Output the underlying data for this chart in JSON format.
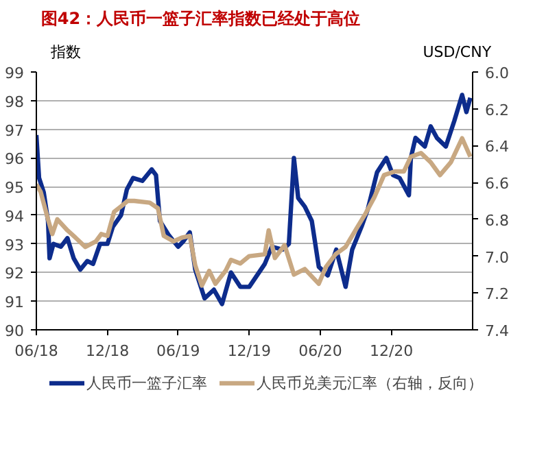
{
  "chart_data": {
    "type": "line",
    "title": "图42：人民币一篮子汇率指数已经处于高位",
    "ylabel": "指数",
    "y2label": "USD/CNY",
    "xlim": [
      "2018-06-01",
      "2021-06-28"
    ],
    "xticks": [
      {
        "value": "2018-06-01",
        "label": "06/18"
      },
      {
        "value": "2018-12-01",
        "label": "12/18"
      },
      {
        "value": "2019-06-01",
        "label": "06/19"
      },
      {
        "value": "2019-12-01",
        "label": "12/19"
      },
      {
        "value": "2020-06-01",
        "label": "06/20"
      },
      {
        "value": "2020-12-01",
        "label": "12/20"
      }
    ],
    "ylim": [
      90,
      99
    ],
    "yticks": [
      90,
      91,
      92,
      93,
      94,
      95,
      96,
      97,
      98,
      99
    ],
    "y2lim": [
      7.4,
      6.0
    ],
    "y2ticks": [
      {
        "value": 7.4,
        "label": "7.4"
      },
      {
        "value": 7.2,
        "label": "7.2"
      },
      {
        "value": 7.0,
        "label": "7.0"
      },
      {
        "value": 6.8,
        "label": "6.8"
      },
      {
        "value": 6.6,
        "label": "6.6"
      },
      {
        "value": 6.4,
        "label": "6.4"
      },
      {
        "value": 6.2,
        "label": "6.2"
      },
      {
        "value": 6.0,
        "label": "6.0"
      }
    ],
    "grid": "y",
    "legend": "bottom",
    "line_style": "solid",
    "marker": "none",
    "series": [
      {
        "name": "人民币一篮子汇率",
        "color": "#0d2c8c",
        "x": [
          "2018-06-01",
          "2018-06-08",
          "2018-06-20",
          "2018-07-01",
          "2018-07-05",
          "2018-07-15",
          "2018-08-03",
          "2018-08-20",
          "2018-09-05",
          "2018-09-22",
          "2018-10-10",
          "2018-10-25",
          "2018-11-12",
          "2018-12-01",
          "2018-12-15",
          "2019-01-05",
          "2019-01-20",
          "2019-02-05",
          "2019-03-01",
          "2019-03-25",
          "2019-04-05",
          "2019-04-15",
          "2019-05-08",
          "2019-06-01",
          "2019-06-15",
          "2019-07-01",
          "2019-07-15",
          "2019-08-08",
          "2019-09-01",
          "2019-09-22",
          "2019-10-15",
          "2019-11-08",
          "2019-12-01",
          "2020-01-10",
          "2020-01-28",
          "2020-02-25",
          "2020-03-12",
          "2020-03-25",
          "2020-04-05",
          "2020-04-22",
          "2020-05-10",
          "2020-05-28",
          "2020-06-20",
          "2020-07-12",
          "2020-08-05",
          "2020-08-22",
          "2020-09-15",
          "2020-10-01",
          "2020-10-25",
          "2020-11-18",
          "2020-12-05",
          "2020-12-22",
          "2021-01-15",
          "2021-01-20",
          "2021-02-01",
          "2021-02-25",
          "2021-03-12",
          "2021-03-28",
          "2021-04-20",
          "2021-05-12",
          "2021-06-01",
          "2021-06-12",
          "2021-06-22"
        ],
        "values": [
          96.8,
          95.3,
          94.8,
          93.8,
          92.5,
          93.0,
          92.9,
          93.2,
          92.5,
          92.1,
          92.4,
          92.3,
          93.0,
          93.0,
          93.6,
          94.0,
          94.9,
          95.3,
          95.2,
          95.6,
          95.4,
          93.8,
          93.3,
          92.9,
          93.1,
          93.4,
          92.1,
          91.1,
          91.4,
          90.9,
          92.0,
          91.5,
          91.5,
          92.3,
          92.9,
          92.8,
          93.0,
          96.0,
          94.6,
          94.3,
          93.8,
          92.2,
          91.9,
          92.8,
          91.5,
          92.8,
          93.6,
          94.2,
          95.5,
          96.0,
          95.4,
          95.3,
          94.7,
          96.0,
          96.7,
          96.4,
          97.1,
          96.7,
          96.4,
          97.3,
          98.2,
          97.6,
          98.1
        ]
      },
      {
        "name": "人民币兑美元汇率（右轴，反向）",
        "color": "#c8a882",
        "axis": "y2",
        "x": [
          "2018-06-01",
          "2018-06-12",
          "2018-07-01",
          "2018-07-12",
          "2018-07-25",
          "2018-08-20",
          "2018-09-10",
          "2018-10-05",
          "2018-11-01",
          "2018-11-15",
          "2018-12-01",
          "2018-12-18",
          "2019-01-05",
          "2019-01-22",
          "2019-02-08",
          "2019-03-20",
          "2019-04-10",
          "2019-04-25",
          "2019-05-20",
          "2019-06-10",
          "2019-07-01",
          "2019-07-15",
          "2019-08-01",
          "2019-08-20",
          "2019-09-05",
          "2019-10-01",
          "2019-10-15",
          "2019-11-08",
          "2019-12-01",
          "2020-01-10",
          "2020-01-20",
          "2020-02-05",
          "2020-03-01",
          "2020-03-25",
          "2020-04-22",
          "2020-05-28",
          "2020-06-15",
          "2020-07-10",
          "2020-08-05",
          "2020-09-02",
          "2020-09-25",
          "2020-10-18",
          "2020-11-12",
          "2020-12-10",
          "2021-01-02",
          "2021-01-20",
          "2021-02-15",
          "2021-03-12",
          "2021-04-05",
          "2021-05-03",
          "2021-06-01",
          "2021-06-22"
        ],
        "values": [
          6.61,
          6.65,
          6.8,
          6.88,
          6.8,
          6.86,
          6.9,
          6.95,
          6.92,
          6.88,
          6.89,
          6.76,
          6.73,
          6.7,
          6.7,
          6.71,
          6.74,
          6.89,
          6.92,
          6.9,
          6.89,
          7.05,
          7.16,
          7.08,
          7.15,
          7.08,
          7.02,
          7.04,
          7.0,
          6.99,
          6.86,
          7.01,
          6.94,
          7.1,
          7.07,
          7.15,
          7.06,
          6.99,
          6.95,
          6.85,
          6.77,
          6.68,
          6.56,
          6.54,
          6.54,
          6.46,
          6.44,
          6.49,
          6.56,
          6.49,
          6.36,
          6.46
        ]
      }
    ]
  }
}
